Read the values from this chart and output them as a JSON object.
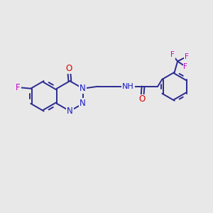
{
  "bg_color": "#e8e8e8",
  "bond_color": "#2a2a90",
  "bond_width": 1.4,
  "atom_colors": {
    "N": "#1a1acc",
    "O": "#dd0000",
    "F": "#cc00cc",
    "H": "#777777",
    "C": "#2a2a90"
  },
  "font_size": 8.5,
  "fig_width": 3.0,
  "fig_height": 3.0,
  "xlim": [
    0,
    10
  ],
  "ylim": [
    0,
    10
  ]
}
